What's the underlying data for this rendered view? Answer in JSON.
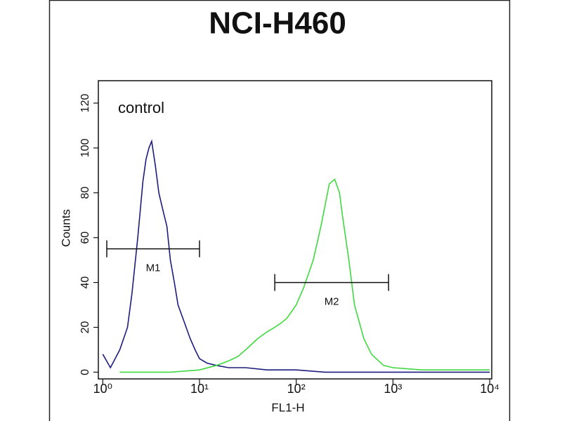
{
  "chart_data": {
    "type": "histogram-line",
    "title": "NCI-H460",
    "annotation": "control",
    "x_label": "FL1-H",
    "y_label": "Counts",
    "xscale": "log",
    "xlim": [
      0.9,
      10500
    ],
    "ylim": [
      -3,
      130
    ],
    "xticks": [
      {
        "value": 1,
        "label": "10⁰"
      },
      {
        "value": 10,
        "label": "10¹"
      },
      {
        "value": 100,
        "label": "10²"
      },
      {
        "value": 1000,
        "label": "10³"
      },
      {
        "value": 10000,
        "label": "10⁴"
      }
    ],
    "yticks": [
      0,
      20,
      40,
      60,
      80,
      100,
      120
    ],
    "series": [
      {
        "color": "#1c1c80",
        "x": [
          1.0,
          1.2,
          1.5,
          1.8,
          2.0,
          2.3,
          2.6,
          2.8,
          3.0,
          3.2,
          3.5,
          3.8,
          4.2,
          4.6,
          5.0,
          5.5,
          6,
          7,
          8,
          9,
          10,
          12,
          15,
          20,
          30,
          50,
          100,
          200,
          500,
          1000,
          10000
        ],
        "values": [
          8,
          2,
          10,
          20,
          35,
          60,
          85,
          95,
          100,
          103,
          92,
          80,
          72,
          65,
          50,
          40,
          30,
          22,
          15,
          10,
          6,
          4,
          3,
          2,
          2,
          1,
          1,
          0,
          0,
          0,
          0
        ]
      },
      {
        "color": "#3fd83f",
        "x": [
          1.5,
          5,
          10,
          15,
          20,
          25,
          30,
          40,
          50,
          60,
          70,
          80,
          100,
          120,
          150,
          180,
          200,
          220,
          250,
          280,
          300,
          350,
          400,
          500,
          600,
          800,
          1000,
          2000,
          10000
        ],
        "values": [
          0,
          0,
          1,
          3,
          5,
          7,
          10,
          15,
          18,
          20,
          22,
          24,
          30,
          38,
          50,
          65,
          75,
          84,
          86,
          80,
          70,
          50,
          30,
          15,
          8,
          3,
          2,
          1,
          1
        ]
      }
    ],
    "markers": [
      {
        "label": "M1",
        "range": [
          1.1,
          10
        ],
        "y": 55
      },
      {
        "label": "M2",
        "range": [
          60,
          900
        ],
        "y": 40
      }
    ]
  }
}
